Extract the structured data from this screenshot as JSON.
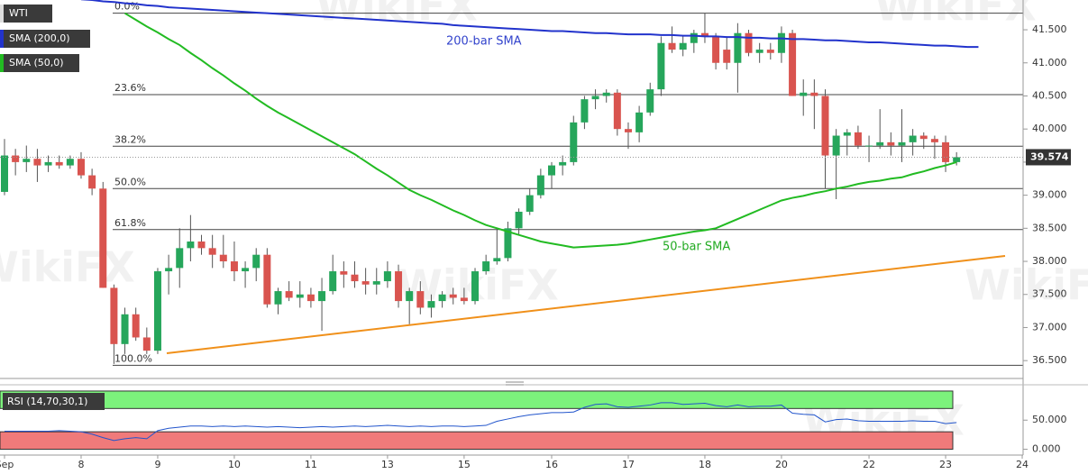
{
  "chart_data": {
    "type": "candlestick",
    "title": "WTI",
    "categories": [
      "Sep",
      null,
      null,
      null,
      null,
      null,
      null,
      "8",
      null,
      null,
      null,
      null,
      null,
      null,
      "9",
      null,
      null,
      null,
      null,
      null,
      null,
      "10",
      null,
      null,
      null,
      null,
      null,
      null,
      "11",
      null,
      null,
      null,
      null,
      null,
      null,
      "13",
      null,
      null,
      null,
      null,
      null,
      null,
      "15",
      null,
      null,
      null,
      null,
      null,
      null,
      null,
      "16",
      null,
      null,
      null,
      null,
      null,
      null,
      "17",
      null,
      null,
      null,
      null,
      null,
      null,
      "18",
      null,
      null,
      null,
      null,
      null,
      null,
      "20",
      null,
      null,
      null,
      null,
      null,
      null,
      null,
      "22",
      null,
      null,
      null,
      null,
      null,
      null,
      "23",
      null,
      null,
      null,
      null,
      null,
      null,
      "24",
      null
    ],
    "open": [
      39.05,
      39.6,
      39.5,
      39.55,
      39.45,
      39.5,
      39.45,
      39.55,
      39.3,
      39.1,
      37.6,
      36.75,
      37.2,
      36.85,
      36.65,
      37.85,
      37.9,
      38.2,
      38.3,
      38.2,
      38.1,
      38.0,
      37.85,
      37.9,
      38.1,
      37.35,
      37.55,
      37.45,
      37.5,
      37.4,
      37.55,
      37.85,
      37.8,
      37.7,
      37.65,
      37.7,
      37.85,
      37.4,
      37.55,
      37.3,
      37.4,
      37.5,
      37.45,
      37.4,
      37.85,
      38.0,
      38.05,
      38.5,
      38.75,
      39.0,
      39.3,
      39.45,
      39.5,
      40.1,
      40.45,
      40.5,
      40.55,
      40.0,
      39.95,
      40.25,
      40.6,
      41.3,
      41.2,
      41.3,
      41.45,
      41.4,
      41.2,
      41.0,
      41.45,
      41.15,
      41.2,
      41.15,
      41.45,
      40.5,
      40.55,
      40.5,
      39.6,
      39.9,
      39.95,
      39.75,
      39.75,
      39.8,
      39.75,
      39.8,
      39.9,
      39.85,
      39.8,
      39.5,
      null,
      null,
      null,
      null,
      null,
      null,
      null
    ],
    "high": [
      39.85,
      39.7,
      39.75,
      39.7,
      39.6,
      39.6,
      39.6,
      39.65,
      39.4,
      39.2,
      37.65,
      37.3,
      37.3,
      37.0,
      37.9,
      38.1,
      38.5,
      38.7,
      38.4,
      38.4,
      38.4,
      38.3,
      38.0,
      38.2,
      38.2,
      37.6,
      37.7,
      37.7,
      37.6,
      37.75,
      38.1,
      38.0,
      38.0,
      37.9,
      37.9,
      38.0,
      37.95,
      37.6,
      37.7,
      37.5,
      37.55,
      37.6,
      37.6,
      37.9,
      38.1,
      38.5,
      38.6,
      38.8,
      39.1,
      39.4,
      39.5,
      39.6,
      40.2,
      40.5,
      40.6,
      40.6,
      40.6,
      40.1,
      40.35,
      40.7,
      41.4,
      41.55,
      41.4,
      41.5,
      41.75,
      41.45,
      41.4,
      41.6,
      41.5,
      41.3,
      41.3,
      41.55,
      41.5,
      40.75,
      40.75,
      40.6,
      40.0,
      40.0,
      40.05,
      39.9,
      40.3,
      39.95,
      40.3,
      40.0,
      39.95,
      39.9,
      39.9,
      39.65,
      null,
      null,
      null,
      null,
      null,
      null,
      null
    ],
    "low": [
      39.0,
      39.3,
      39.35,
      39.2,
      39.35,
      39.4,
      39.4,
      39.25,
      39.0,
      37.6,
      36.45,
      36.6,
      36.8,
      36.6,
      36.6,
      37.5,
      37.6,
      38.0,
      38.1,
      37.9,
      37.9,
      37.7,
      37.6,
      37.7,
      37.3,
      37.2,
      37.4,
      37.3,
      37.3,
      36.95,
      37.5,
      37.6,
      37.6,
      37.5,
      37.5,
      37.6,
      37.3,
      37.05,
      37.2,
      37.15,
      37.3,
      37.35,
      37.35,
      37.35,
      37.8,
      37.95,
      38.0,
      38.4,
      38.7,
      38.95,
      39.1,
      39.3,
      39.45,
      40.0,
      40.3,
      40.4,
      39.9,
      39.7,
      39.8,
      40.2,
      40.5,
      41.15,
      41.1,
      41.15,
      41.3,
      40.9,
      40.9,
      40.55,
      41.1,
      41.0,
      41.05,
      41.0,
      40.5,
      40.2,
      40.0,
      39.1,
      38.94,
      39.6,
      39.7,
      39.5,
      39.7,
      39.6,
      39.5,
      39.6,
      39.7,
      39.55,
      39.35,
      39.45,
      null,
      null,
      null,
      null,
      null,
      null,
      null
    ],
    "close": [
      39.6,
      39.5,
      39.55,
      39.45,
      39.5,
      39.45,
      39.55,
      39.3,
      39.1,
      37.6,
      36.75,
      37.2,
      36.85,
      36.65,
      37.85,
      37.9,
      38.2,
      38.3,
      38.2,
      38.1,
      38.0,
      37.85,
      37.9,
      38.1,
      37.35,
      37.55,
      37.45,
      37.5,
      37.4,
      37.55,
      37.85,
      37.8,
      37.7,
      37.65,
      37.7,
      37.85,
      37.4,
      37.55,
      37.3,
      37.4,
      37.5,
      37.45,
      37.4,
      37.85,
      38.0,
      38.05,
      38.5,
      38.75,
      39.0,
      39.3,
      39.45,
      39.5,
      40.1,
      40.45,
      40.5,
      40.55,
      40.0,
      39.95,
      40.25,
      40.6,
      41.3,
      41.2,
      41.3,
      41.45,
      41.4,
      41.0,
      41.0,
      41.45,
      41.15,
      41.2,
      41.15,
      41.45,
      40.5,
      40.55,
      40.5,
      39.6,
      39.9,
      39.95,
      39.75,
      39.75,
      39.8,
      39.75,
      39.8,
      39.9,
      39.85,
      39.8,
      39.5,
      39.574,
      null,
      null,
      null,
      null,
      null,
      null,
      null
    ],
    "up_color": "#26a65b",
    "down_color": "#d9544f",
    "series": [
      {
        "name": "SMA (200,0)",
        "color": "#2233cc",
        "values": [
          null,
          null,
          null,
          null,
          null,
          null,
          null,
          41.96,
          41.95,
          41.93,
          41.92,
          41.9,
          41.89,
          41.87,
          41.86,
          41.84,
          41.83,
          41.82,
          41.81,
          41.8,
          41.79,
          41.78,
          41.77,
          41.76,
          41.75,
          41.74,
          41.73,
          41.72,
          41.71,
          41.7,
          41.69,
          41.68,
          41.67,
          41.66,
          41.65,
          41.64,
          41.63,
          41.62,
          41.61,
          41.6,
          41.59,
          41.57,
          41.56,
          41.55,
          41.54,
          41.53,
          41.52,
          41.51,
          41.5,
          41.49,
          41.48,
          41.48,
          41.47,
          41.46,
          41.45,
          41.45,
          41.44,
          41.43,
          41.43,
          41.43,
          41.42,
          41.42,
          41.41,
          41.41,
          41.4,
          41.4,
          41.39,
          41.39,
          41.38,
          41.38,
          41.37,
          41.37,
          41.36,
          41.36,
          41.35,
          41.34,
          41.34,
          41.33,
          41.32,
          41.31,
          41.31,
          41.3,
          41.29,
          41.28,
          41.27,
          41.26,
          41.26,
          41.25,
          41.24,
          41.24,
          null,
          null,
          null,
          null,
          null
        ]
      },
      {
        "name": "SMA (50,0)",
        "color": "#22bb22",
        "values": [
          null,
          null,
          null,
          null,
          null,
          null,
          null,
          null,
          null,
          null,
          null,
          41.75,
          41.65,
          41.55,
          41.46,
          41.36,
          41.27,
          41.15,
          41.04,
          40.92,
          40.81,
          40.69,
          40.58,
          40.46,
          40.35,
          40.25,
          40.16,
          40.07,
          39.98,
          39.89,
          39.8,
          39.71,
          39.62,
          39.51,
          39.4,
          39.3,
          39.19,
          39.08,
          39.0,
          38.93,
          38.85,
          38.77,
          38.7,
          38.62,
          38.55,
          38.5,
          38.45,
          38.4,
          38.35,
          38.3,
          38.27,
          38.24,
          38.21,
          38.22,
          38.23,
          38.24,
          38.25,
          38.27,
          38.3,
          38.33,
          38.36,
          38.39,
          38.42,
          38.45,
          38.47,
          38.5,
          38.57,
          38.64,
          38.71,
          38.78,
          38.85,
          38.92,
          38.96,
          38.99,
          39.03,
          39.06,
          39.1,
          39.13,
          39.17,
          39.2,
          39.22,
          39.25,
          39.27,
          39.32,
          39.36,
          39.41,
          39.45,
          39.5,
          null,
          null,
          null,
          null,
          null,
          null,
          null
        ]
      }
    ],
    "annotations": [
      "200-bar SMA",
      "50-bar SMA"
    ],
    "fib": [
      {
        "label": "0.0%",
        "value": 41.75
      },
      {
        "label": "23.6%",
        "value": 40.52
      },
      {
        "label": "38.2%",
        "value": 39.74
      },
      {
        "label": "50.0%",
        "value": 39.1
      },
      {
        "label": "61.8%",
        "value": 38.48
      },
      {
        "label": "100.0%",
        "value": 36.43
      }
    ],
    "ylim": [
      36.23,
      41.95
    ],
    "yticks": [
      {
        "value": 36.5,
        "label": "36.500"
      },
      {
        "value": 37,
        "label": "37.000"
      },
      {
        "value": 37.5,
        "label": "37.500"
      },
      {
        "value": 38,
        "label": "38.000"
      },
      {
        "value": 38.5,
        "label": "38.500"
      },
      {
        "value": 39,
        "label": "39.000"
      },
      {
        "value": 39.5,
        "label": "39.500"
      },
      {
        "value": 40,
        "label": "40.000"
      },
      {
        "value": 40.5,
        "label": "40.500"
      },
      {
        "value": 41,
        "label": "41.000"
      },
      {
        "value": 41.5,
        "label": "41.500"
      }
    ],
    "watermark": "WikiFX",
    "rsi": {
      "name": "RSI (14,70,30,1)",
      "color": "#2255cc",
      "overbought": 70,
      "oversold": 30,
      "ylim": [
        -10,
        103
      ],
      "yticks": [
        {
          "value": 0,
          "label": "0.000"
        },
        {
          "value": 50,
          "label": "50.000"
        }
      ],
      "values": [
        31,
        31,
        31,
        31,
        31,
        32,
        31,
        30,
        26,
        20,
        15,
        18,
        20,
        18,
        32,
        36,
        38,
        40,
        40,
        39,
        40,
        39,
        40,
        39,
        38,
        39,
        38,
        37,
        38,
        39,
        38,
        39,
        40,
        39,
        40,
        41,
        40,
        39,
        40,
        39,
        40,
        40,
        39,
        40,
        41,
        48,
        52,
        56,
        59,
        61,
        63,
        63,
        64,
        72,
        77,
        78,
        73,
        72,
        74,
        76,
        80,
        80,
        77,
        78,
        79,
        75,
        73,
        76,
        73,
        74,
        74,
        76,
        62,
        60,
        59,
        47,
        51,
        52,
        49,
        48,
        48,
        48,
        48,
        49,
        48,
        48,
        44,
        46,
        null,
        null,
        null,
        null,
        null,
        null,
        null
      ]
    }
  }
}
